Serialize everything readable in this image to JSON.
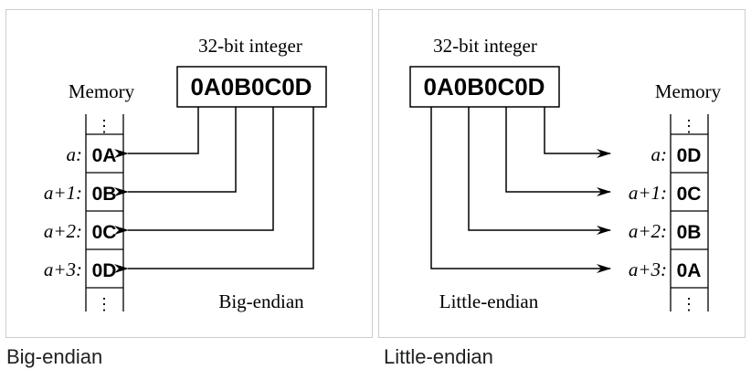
{
  "figures": {
    "big_endian": {
      "integer_label": "32-bit integer",
      "integer_value": "0A0B0C0D",
      "memory_label": "Memory",
      "ellipsis": "⋮",
      "rows": [
        {
          "addr": "a:",
          "byte": "0A"
        },
        {
          "addr": "a+1:",
          "byte": "0B"
        },
        {
          "addr": "a+2:",
          "byte": "0C"
        },
        {
          "addr": "a+3:",
          "byte": "0D"
        }
      ],
      "endianness_label": "Big-endian",
      "caption": "Big-endian"
    },
    "little_endian": {
      "integer_label": "32-bit integer",
      "integer_value": "0A0B0C0D",
      "memory_label": "Memory",
      "ellipsis": "⋮",
      "rows": [
        {
          "addr": "a:",
          "byte": "0D"
        },
        {
          "addr": "a+1:",
          "byte": "0C"
        },
        {
          "addr": "a+2:",
          "byte": "0B"
        },
        {
          "addr": "a+3:",
          "byte": "0A"
        }
      ],
      "endianness_label": "Little-endian",
      "caption": "Little-endian"
    }
  }
}
